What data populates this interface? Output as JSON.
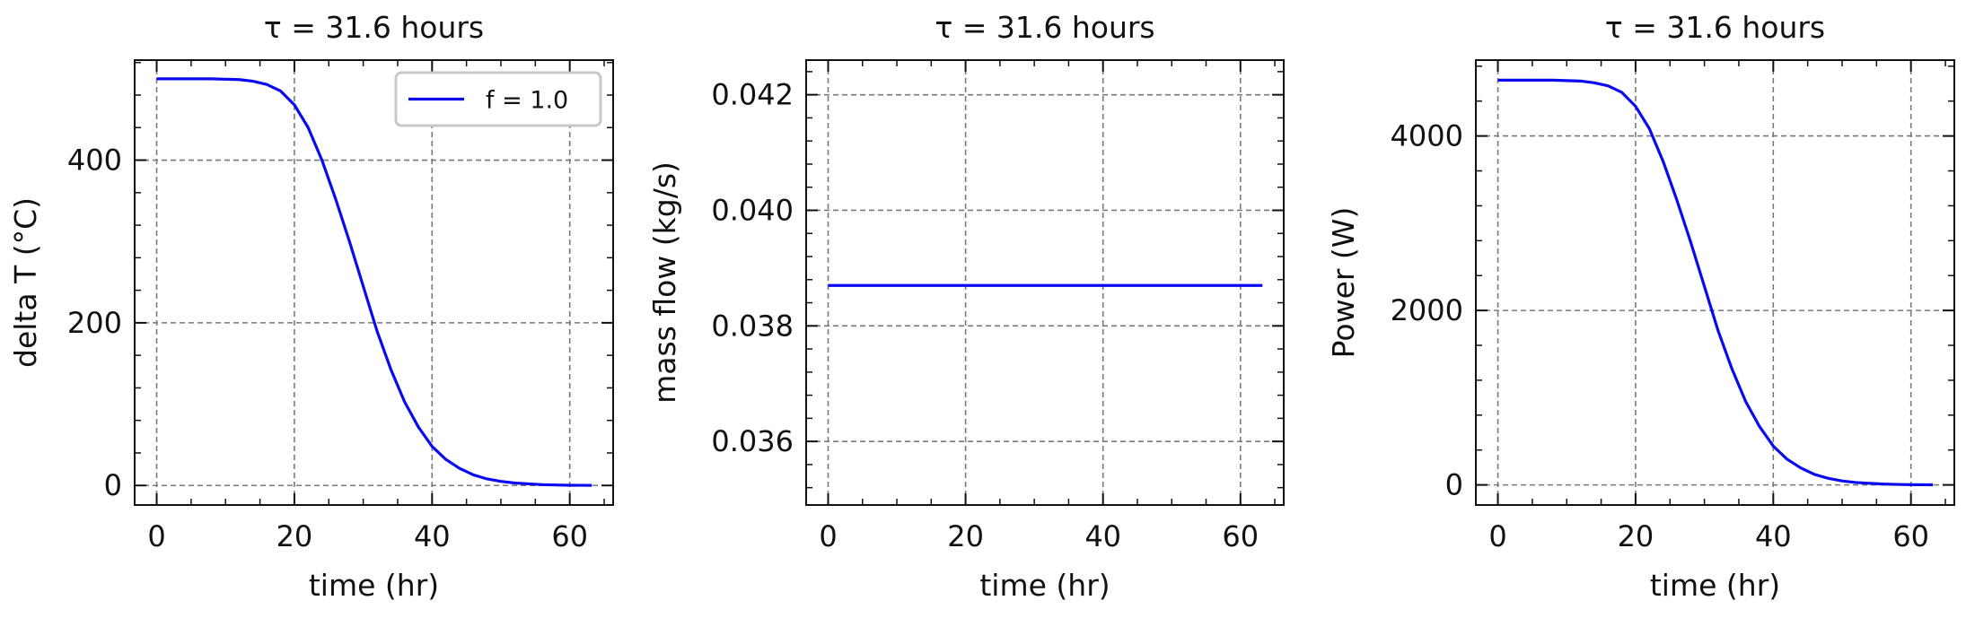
{
  "chart_data": [
    {
      "type": "line",
      "title": "τ = 31.6 hours",
      "xlabel": "time (hr)",
      "ylabel": "delta T (°C)",
      "xlim": [
        -3.2,
        66.3
      ],
      "ylim": [
        -24,
        523
      ],
      "xticks": [
        0,
        20,
        40,
        60
      ],
      "xtick_labels": [
        "0",
        "20",
        "40",
        "60"
      ],
      "yticks": [
        0,
        200,
        400
      ],
      "ytick_labels": [
        "0",
        "200",
        "400"
      ],
      "grid": true,
      "legend_placement": "top-right",
      "series": [
        {
          "name": "f = 1.0",
          "color": "#0a0af0",
          "x": [
            0,
            4,
            8,
            12,
            14,
            16,
            18,
            20,
            22,
            24,
            26,
            28,
            30,
            32,
            34,
            36,
            38,
            40,
            42,
            44,
            46,
            48,
            50,
            52,
            54,
            56,
            58,
            60,
            62,
            63.2
          ],
          "y": [
            500,
            500,
            500,
            499,
            497,
            493,
            485,
            468,
            440,
            400,
            352,
            300,
            245,
            190,
            143,
            103,
            72,
            48,
            32,
            21,
            13,
            8,
            5,
            3,
            2,
            1,
            0.6,
            0.3,
            0.2,
            0.1
          ]
        }
      ]
    },
    {
      "type": "line",
      "title": "τ = 31.6 hours",
      "xlabel": "time (hr)",
      "ylabel": "mass flow (kg/s)",
      "xlim": [
        -3.2,
        66.3
      ],
      "ylim": [
        0.0349,
        0.0426
      ],
      "xticks": [
        0,
        20,
        40,
        60
      ],
      "xtick_labels": [
        "0",
        "20",
        "40",
        "60"
      ],
      "yticks": [
        0.036,
        0.038,
        0.04,
        0.042
      ],
      "ytick_labels": [
        "0.036",
        "0.038",
        "0.040",
        "0.042"
      ],
      "grid": true,
      "series": [
        {
          "color": "#0a0af0",
          "x": [
            0,
            63.2
          ],
          "y": [
            0.0387,
            0.0387
          ]
        }
      ]
    },
    {
      "type": "line",
      "title": "τ = 31.6 hours",
      "xlabel": "time (hr)",
      "ylabel": "Power (W)",
      "xlim": [
        -3.2,
        66.3
      ],
      "ylim": [
        -230,
        4870
      ],
      "xticks": [
        0,
        20,
        40,
        60
      ],
      "xtick_labels": [
        "0",
        "20",
        "40",
        "60"
      ],
      "yticks": [
        0,
        2000,
        4000
      ],
      "ytick_labels": [
        "0",
        "2000",
        "4000"
      ],
      "grid": true,
      "series": [
        {
          "color": "#0a0af0",
          "x": [
            0,
            4,
            8,
            12,
            14,
            16,
            18,
            20,
            22,
            24,
            26,
            28,
            30,
            32,
            34,
            36,
            38,
            40,
            42,
            44,
            46,
            48,
            50,
            52,
            54,
            56,
            58,
            60,
            62,
            63.2
          ],
          "y": [
            4640,
            4640,
            4640,
            4630,
            4610,
            4575,
            4500,
            4340,
            4085,
            3710,
            3265,
            2785,
            2275,
            1765,
            1330,
            955,
            670,
            445,
            295,
            195,
            120,
            75,
            46,
            28,
            18,
            10,
            6,
            3,
            2,
            1
          ]
        }
      ]
    }
  ]
}
